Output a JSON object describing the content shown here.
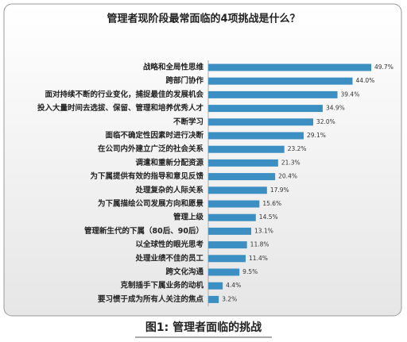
{
  "chart_data": {
    "type": "bar",
    "orientation": "horizontal",
    "title": "管理者现阶段最常面临的4项挑战是什么？",
    "caption": "图1: 管理者面临的挑战",
    "categories": [
      "战略和全局性思维",
      "跨部门协作",
      "面对持续不断的行业变化，捕捉最佳的发展机会",
      "投入大量时间去选拔、保留、管理和培养优秀人才",
      "不断学习",
      "面临不确定性因素时进行决断",
      "在公司内外建立广泛的社会关系",
      "调遣和重新分配资源",
      "为下属提供有效的指导和意见反馈",
      "处理复杂的人际关系",
      "为下属描绘公司发展方向和愿景",
      "管理上级",
      "管理新生代的下属（80后、90后）",
      "以全球性的眼光思考",
      "处理业绩不佳的员工",
      "跨文化沟通",
      "克制插手下属业务的动机",
      "要习惯于成为所有人关注的焦点"
    ],
    "values": [
      49.7,
      44,
      39.4,
      34.9,
      32,
      29.1,
      23.2,
      21.3,
      20.4,
      17.9,
      15.6,
      14.5,
      13.1,
      11.8,
      11.4,
      9.5,
      4.4,
      3.2
    ],
    "value_labels": [
      "49.7%",
      "44.0%",
      "39.4%",
      "34.9%",
      "32.0%",
      "29.1%",
      "23.2%",
      "21.3%",
      "20.4%",
      "17.9%",
      "15.6%",
      "14.5%",
      "13.1%",
      "11.8%",
      "11.4%",
      "9.5%",
      "4.4%",
      "3.2%"
    ],
    "color": "#3b8fc2"
  }
}
